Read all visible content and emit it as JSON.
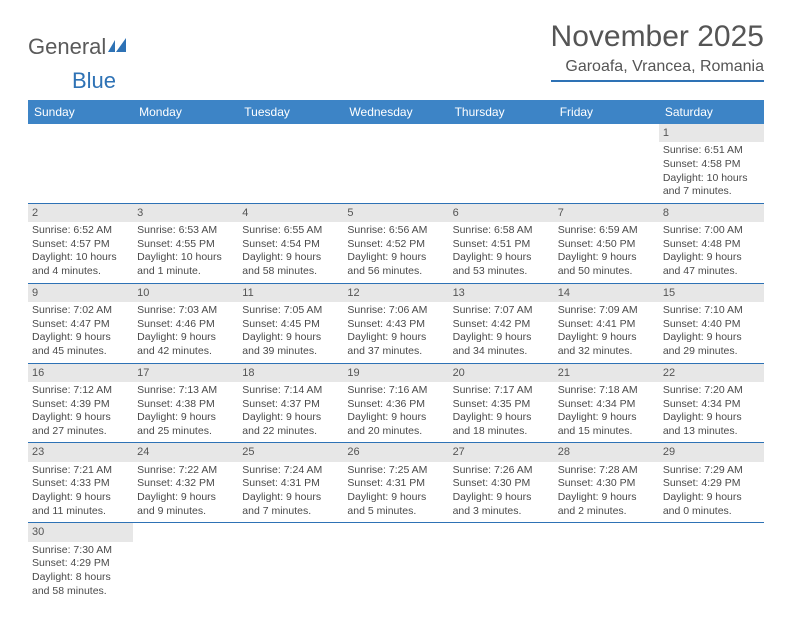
{
  "logo": {
    "text_a": "General",
    "text_b": "Blue"
  },
  "title": "November 2025",
  "location": "Garoafa, Vrancea, Romania",
  "colors": {
    "header_bar": "#3d84c6",
    "rule": "#2e72b5",
    "daynum_bg": "#e7e7e7",
    "text": "#4a4a4a"
  },
  "weekdays": [
    "Sunday",
    "Monday",
    "Tuesday",
    "Wednesday",
    "Thursday",
    "Friday",
    "Saturday"
  ],
  "weeks": [
    [
      null,
      null,
      null,
      null,
      null,
      null,
      {
        "n": "1",
        "sr": "Sunrise: 6:51 AM",
        "ss": "Sunset: 4:58 PM",
        "d1": "Daylight: 10 hours",
        "d2": "and 7 minutes."
      }
    ],
    [
      {
        "n": "2",
        "sr": "Sunrise: 6:52 AM",
        "ss": "Sunset: 4:57 PM",
        "d1": "Daylight: 10 hours",
        "d2": "and 4 minutes."
      },
      {
        "n": "3",
        "sr": "Sunrise: 6:53 AM",
        "ss": "Sunset: 4:55 PM",
        "d1": "Daylight: 10 hours",
        "d2": "and 1 minute."
      },
      {
        "n": "4",
        "sr": "Sunrise: 6:55 AM",
        "ss": "Sunset: 4:54 PM",
        "d1": "Daylight: 9 hours",
        "d2": "and 58 minutes."
      },
      {
        "n": "5",
        "sr": "Sunrise: 6:56 AM",
        "ss": "Sunset: 4:52 PM",
        "d1": "Daylight: 9 hours",
        "d2": "and 56 minutes."
      },
      {
        "n": "6",
        "sr": "Sunrise: 6:58 AM",
        "ss": "Sunset: 4:51 PM",
        "d1": "Daylight: 9 hours",
        "d2": "and 53 minutes."
      },
      {
        "n": "7",
        "sr": "Sunrise: 6:59 AM",
        "ss": "Sunset: 4:50 PM",
        "d1": "Daylight: 9 hours",
        "d2": "and 50 minutes."
      },
      {
        "n": "8",
        "sr": "Sunrise: 7:00 AM",
        "ss": "Sunset: 4:48 PM",
        "d1": "Daylight: 9 hours",
        "d2": "and 47 minutes."
      }
    ],
    [
      {
        "n": "9",
        "sr": "Sunrise: 7:02 AM",
        "ss": "Sunset: 4:47 PM",
        "d1": "Daylight: 9 hours",
        "d2": "and 45 minutes."
      },
      {
        "n": "10",
        "sr": "Sunrise: 7:03 AM",
        "ss": "Sunset: 4:46 PM",
        "d1": "Daylight: 9 hours",
        "d2": "and 42 minutes."
      },
      {
        "n": "11",
        "sr": "Sunrise: 7:05 AM",
        "ss": "Sunset: 4:45 PM",
        "d1": "Daylight: 9 hours",
        "d2": "and 39 minutes."
      },
      {
        "n": "12",
        "sr": "Sunrise: 7:06 AM",
        "ss": "Sunset: 4:43 PM",
        "d1": "Daylight: 9 hours",
        "d2": "and 37 minutes."
      },
      {
        "n": "13",
        "sr": "Sunrise: 7:07 AM",
        "ss": "Sunset: 4:42 PM",
        "d1": "Daylight: 9 hours",
        "d2": "and 34 minutes."
      },
      {
        "n": "14",
        "sr": "Sunrise: 7:09 AM",
        "ss": "Sunset: 4:41 PM",
        "d1": "Daylight: 9 hours",
        "d2": "and 32 minutes."
      },
      {
        "n": "15",
        "sr": "Sunrise: 7:10 AM",
        "ss": "Sunset: 4:40 PM",
        "d1": "Daylight: 9 hours",
        "d2": "and 29 minutes."
      }
    ],
    [
      {
        "n": "16",
        "sr": "Sunrise: 7:12 AM",
        "ss": "Sunset: 4:39 PM",
        "d1": "Daylight: 9 hours",
        "d2": "and 27 minutes."
      },
      {
        "n": "17",
        "sr": "Sunrise: 7:13 AM",
        "ss": "Sunset: 4:38 PM",
        "d1": "Daylight: 9 hours",
        "d2": "and 25 minutes."
      },
      {
        "n": "18",
        "sr": "Sunrise: 7:14 AM",
        "ss": "Sunset: 4:37 PM",
        "d1": "Daylight: 9 hours",
        "d2": "and 22 minutes."
      },
      {
        "n": "19",
        "sr": "Sunrise: 7:16 AM",
        "ss": "Sunset: 4:36 PM",
        "d1": "Daylight: 9 hours",
        "d2": "and 20 minutes."
      },
      {
        "n": "20",
        "sr": "Sunrise: 7:17 AM",
        "ss": "Sunset: 4:35 PM",
        "d1": "Daylight: 9 hours",
        "d2": "and 18 minutes."
      },
      {
        "n": "21",
        "sr": "Sunrise: 7:18 AM",
        "ss": "Sunset: 4:34 PM",
        "d1": "Daylight: 9 hours",
        "d2": "and 15 minutes."
      },
      {
        "n": "22",
        "sr": "Sunrise: 7:20 AM",
        "ss": "Sunset: 4:34 PM",
        "d1": "Daylight: 9 hours",
        "d2": "and 13 minutes."
      }
    ],
    [
      {
        "n": "23",
        "sr": "Sunrise: 7:21 AM",
        "ss": "Sunset: 4:33 PM",
        "d1": "Daylight: 9 hours",
        "d2": "and 11 minutes."
      },
      {
        "n": "24",
        "sr": "Sunrise: 7:22 AM",
        "ss": "Sunset: 4:32 PM",
        "d1": "Daylight: 9 hours",
        "d2": "and 9 minutes."
      },
      {
        "n": "25",
        "sr": "Sunrise: 7:24 AM",
        "ss": "Sunset: 4:31 PM",
        "d1": "Daylight: 9 hours",
        "d2": "and 7 minutes."
      },
      {
        "n": "26",
        "sr": "Sunrise: 7:25 AM",
        "ss": "Sunset: 4:31 PM",
        "d1": "Daylight: 9 hours",
        "d2": "and 5 minutes."
      },
      {
        "n": "27",
        "sr": "Sunrise: 7:26 AM",
        "ss": "Sunset: 4:30 PM",
        "d1": "Daylight: 9 hours",
        "d2": "and 3 minutes."
      },
      {
        "n": "28",
        "sr": "Sunrise: 7:28 AM",
        "ss": "Sunset: 4:30 PM",
        "d1": "Daylight: 9 hours",
        "d2": "and 2 minutes."
      },
      {
        "n": "29",
        "sr": "Sunrise: 7:29 AM",
        "ss": "Sunset: 4:29 PM",
        "d1": "Daylight: 9 hours",
        "d2": "and 0 minutes."
      }
    ],
    [
      {
        "n": "30",
        "sr": "Sunrise: 7:30 AM",
        "ss": "Sunset: 4:29 PM",
        "d1": "Daylight: 8 hours",
        "d2": "and 58 minutes."
      },
      null,
      null,
      null,
      null,
      null,
      null
    ]
  ]
}
